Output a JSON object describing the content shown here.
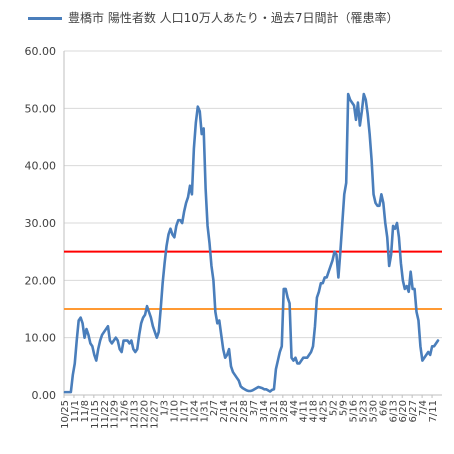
{
  "chart_data": {
    "type": "line",
    "title": "",
    "xlabel": "",
    "ylabel": "",
    "ylim": [
      0,
      60
    ],
    "grid": true,
    "legend_position": "top-left",
    "y_ticks": [
      "0.00",
      "10.00",
      "20.00",
      "30.00",
      "40.00",
      "50.00",
      "60.00"
    ],
    "x_ticks": [
      "10/25",
      "11/1",
      "11/8",
      "11/15",
      "11/22",
      "11/29",
      "12/6",
      "12/13",
      "12/20",
      "12/27",
      "1/3",
      "1/10",
      "1/17",
      "1/24",
      "1/31",
      "2/7",
      "2/14",
      "2/21",
      "2/28",
      "3/7",
      "3/14",
      "3/21",
      "3/28",
      "4/4",
      "4/11",
      "4/18",
      "4/25",
      "5/2",
      "5/9",
      "5/16",
      "5/23",
      "5/30",
      "6/6",
      "6/13",
      "6/20",
      "6/27",
      "7/4",
      "7/11"
    ],
    "series": [
      {
        "name": "豊橋市 陽性者数 人口10万人あたり・過去7日間計（罹患率）",
        "color": "#4a7ebb",
        "values": [
          0.5,
          0.5,
          0.5,
          0.5,
          3.5,
          5.5,
          9.5,
          13.0,
          13.5,
          12.5,
          10.0,
          11.5,
          10.5,
          9.0,
          8.5,
          7.0,
          6.0,
          8.0,
          9.5,
          10.5,
          11.0,
          11.5,
          12.0,
          9.5,
          9.0,
          9.5,
          10.0,
          9.5,
          8.0,
          7.5,
          9.5,
          9.5,
          9.5,
          9.0,
          9.5,
          8.0,
          7.5,
          8.0,
          10.5,
          12.5,
          13.5,
          14.0,
          15.5,
          14.5,
          13.5,
          12.0,
          11.0,
          10.0,
          11.0,
          15.0,
          19.5,
          23.0,
          26.0,
          28.0,
          29.0,
          28.0,
          27.5,
          29.5,
          30.5,
          30.5,
          30.0,
          32.0,
          33.5,
          34.5,
          36.5,
          35.0,
          43.0,
          47.5,
          50.3,
          49.5,
          45.5,
          46.5,
          36.0,
          29.5,
          26.5,
          22.5,
          20.0,
          14.5,
          12.5,
          13.0,
          10.5,
          8.0,
          6.5,
          7.0,
          8.0,
          5.0,
          4.0,
          3.5,
          3.0,
          2.5,
          1.5,
          1.2,
          1.0,
          0.8,
          0.7,
          0.7,
          0.8,
          1.0,
          1.2,
          1.4,
          1.3,
          1.2,
          1.0,
          1.0,
          0.8,
          0.6,
          0.9,
          1.0,
          4.5,
          6.0,
          7.5,
          8.5,
          18.5,
          18.5,
          17.0,
          16.0,
          6.5,
          6.0,
          6.5,
          5.5,
          5.5,
          6.0,
          6.5,
          6.5,
          6.5,
          7.0,
          7.5,
          8.5,
          12.0,
          17.0,
          18.0,
          19.5,
          19.5,
          20.5,
          20.5,
          21.5,
          22.5,
          23.5,
          25.0,
          24.5,
          20.5,
          25.0,
          30.0,
          35.0,
          37.0,
          52.5,
          51.5,
          51.0,
          50.5,
          48.0,
          51.0,
          47.0,
          49.5,
          52.5,
          51.5,
          49.0,
          45.5,
          41.0,
          35.0,
          33.5,
          33.0,
          33.0,
          35.0,
          33.5,
          30.0,
          27.5,
          22.5,
          24.5,
          29.5,
          29.0,
          30.0,
          27.5,
          23.0,
          20.0,
          18.5,
          19.0,
          18.0,
          21.5,
          18.5,
          18.5,
          14.5,
          13.0,
          8.5,
          6.0,
          6.5,
          7.0,
          7.5,
          7.0,
          8.5,
          8.5,
          9.0,
          9.5
        ]
      }
    ],
    "reference_lines": [
      {
        "value": 25,
        "color": "#ff0000"
      },
      {
        "value": 15,
        "color": "#ff9933"
      }
    ]
  }
}
